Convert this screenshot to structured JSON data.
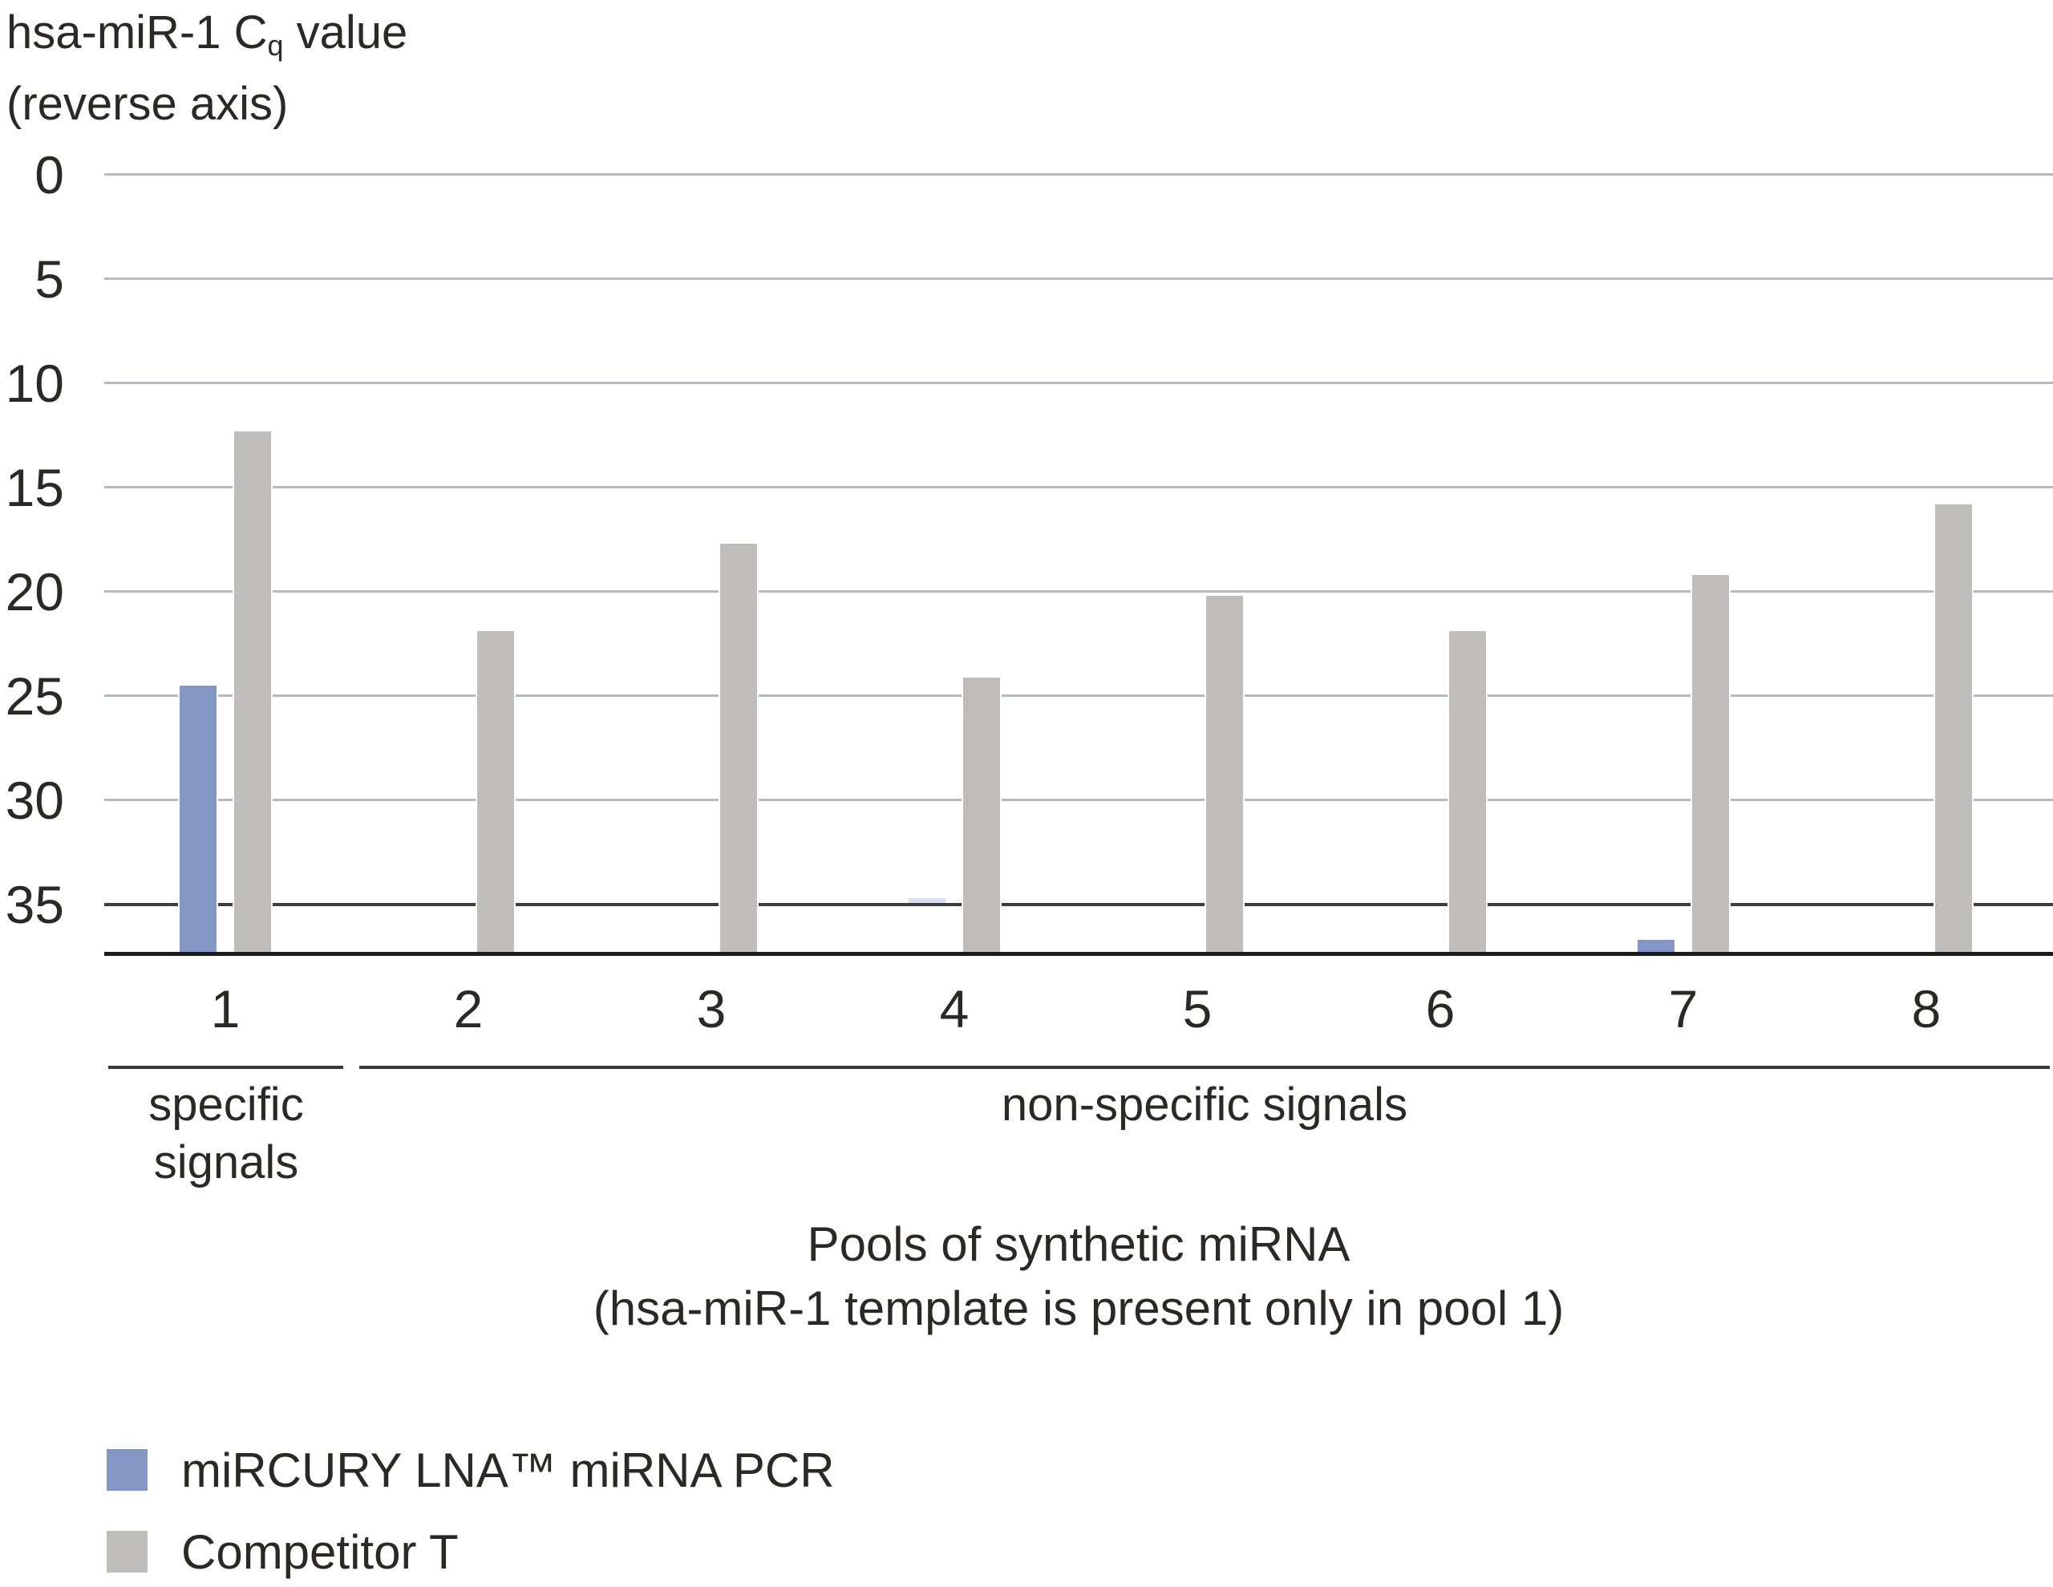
{
  "colors": {
    "mircury_blue": "#8496c4",
    "competitor_gray": "#bfbdbb",
    "pale_blue": "#dadeef",
    "grid": "#b6b9c2",
    "grid_dark": "#3f3e3e",
    "axis_line": "#1d1c1b",
    "bracket": "#3a3939",
    "text": "#2b2927"
  },
  "chart_data": {
    "type": "bar",
    "title": {
      "pre": "hsa-miR-1 C",
      "sub": "q",
      "post": " value",
      "line2": "(reverse axis)"
    },
    "y_axis": {
      "reverse": true,
      "ticks": [
        0,
        5,
        10,
        15,
        20,
        25,
        30,
        35
      ],
      "emphasized_tick": 35,
      "plot_bottom_value": 37.4,
      "grid": true
    },
    "categories": [
      "1",
      "2",
      "3",
      "4",
      "5",
      "6",
      "7",
      "8"
    ],
    "series": [
      {
        "name": "miRCURY LNA™ miRNA PCR",
        "color": "#8496c4",
        "values": [
          24.5,
          null,
          null,
          34.7,
          null,
          null,
          36.7,
          null
        ],
        "pale": [
          false,
          false,
          false,
          true,
          false,
          false,
          false,
          false
        ]
      },
      {
        "name": "Competitor T",
        "color": "#bfbdbb",
        "values": [
          12.3,
          21.9,
          17.7,
          24.1,
          20.2,
          21.9,
          19.2,
          15.8
        ],
        "pale": [
          false,
          false,
          false,
          false,
          false,
          false,
          false,
          false
        ]
      }
    ],
    "group_brackets": [
      {
        "pools": "1",
        "label_lines": [
          "specific",
          "signals"
        ]
      },
      {
        "pools": "2-8",
        "label_lines": [
          "non-specific signals"
        ]
      }
    ],
    "x_title_line1": "Pools of synthetic miRNA",
    "x_title_line2": "(hsa-miR-1 template is present only in pool 1)",
    "legend_position": "bottom-left"
  },
  "legend": {
    "items": [
      {
        "label": "miRCURY LNA™ miRNA PCR",
        "color": "#8496c4"
      },
      {
        "label": "Competitor T",
        "color": "#bfbdbb"
      }
    ]
  }
}
